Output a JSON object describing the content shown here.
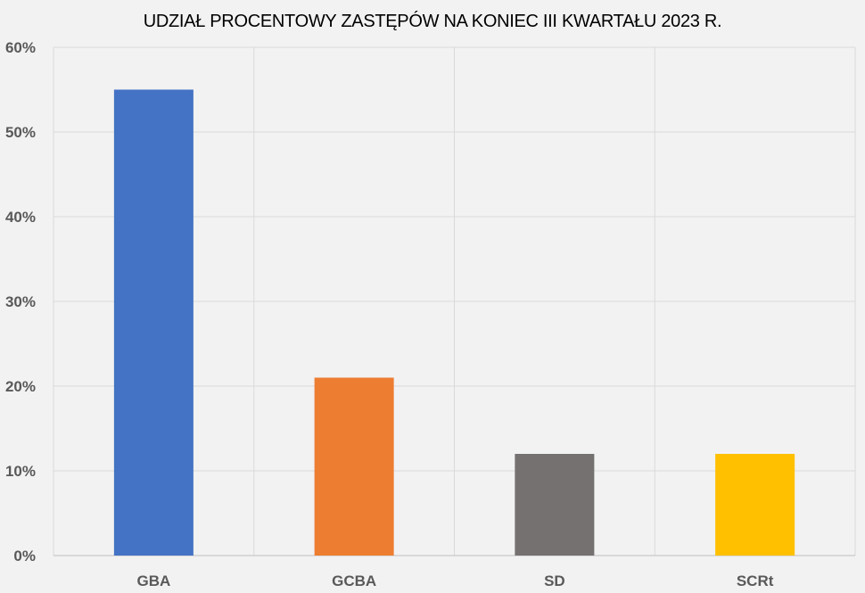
{
  "chart_data": {
    "type": "bar",
    "title": "UDZIAŁ PROCENTOWY ZASTĘPÓW NA KONIEC III KWARTAŁU 2023 R.",
    "categories": [
      "GBA",
      "GCBA",
      "SD",
      "SCRt"
    ],
    "values": [
      55,
      21,
      12,
      12
    ],
    "colors": [
      "#4472c4",
      "#ed7d31",
      "#767171",
      "#ffc000"
    ],
    "ylim": [
      0,
      60
    ],
    "yticks": [
      "0%",
      "10%",
      "20%",
      "30%",
      "40%",
      "50%",
      "60%"
    ],
    "ytick_values": [
      0,
      10,
      20,
      30,
      40,
      50,
      60
    ],
    "grid": true,
    "gridline_color": "#d9d9d9",
    "legend": "none"
  }
}
